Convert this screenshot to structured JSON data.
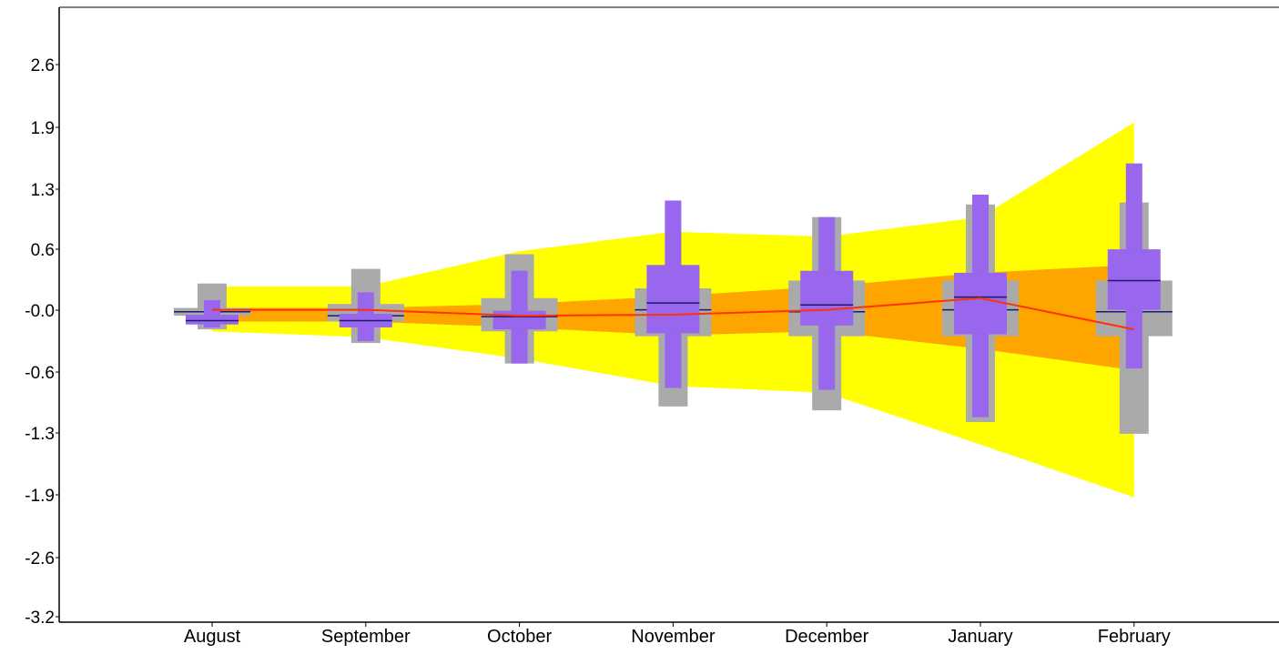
{
  "chart_data": {
    "type": "area",
    "categories": [
      "August",
      "September",
      "October",
      "November",
      "December",
      "January",
      "February"
    ],
    "y_ticks": [
      2.6,
      1.9,
      1.3,
      0.6,
      -0.0,
      -0.6,
      -1.3,
      -1.9,
      -2.6,
      -3.2
    ],
    "y_tick_labels": [
      "2.6",
      "1.9",
      "1.3",
      "0.6",
      "-0.0",
      "-0.6",
      "-1.3",
      "-1.9",
      "-2.6",
      "-3.2"
    ],
    "ylim": [
      -3.2,
      3.1
    ],
    "title": "",
    "xlabel": "",
    "ylabel": "",
    "grid": false,
    "bands": {
      "outer": {
        "color": "#ffff00",
        "upper": [
          0.24,
          0.24,
          0.6,
          0.8,
          0.75,
          0.95,
          1.92
        ],
        "lower": [
          -0.22,
          -0.28,
          -0.5,
          -0.78,
          -0.85,
          -1.38,
          -1.92
        ]
      },
      "inner": {
        "color": "#ffa500",
        "upper": [
          0.02,
          0.02,
          0.06,
          0.14,
          0.24,
          0.38,
          0.46
        ],
        "lower": [
          -0.12,
          -0.12,
          -0.18,
          -0.26,
          -0.22,
          -0.4,
          -0.62
        ]
      }
    },
    "forecast_line": {
      "color": "#ff3300",
      "values": [
        0.0,
        0.0,
        -0.06,
        -0.05,
        0.0,
        0.12,
        -0.2
      ]
    },
    "grey_boxes": {
      "color": "#aaaaaa",
      "whisker_high": [
        0.27,
        0.42,
        0.57,
        null,
        0.95,
        1.08,
        1.1
      ],
      "whisker_low": [
        -0.2,
        -0.34,
        -0.55,
        -0.99,
        -1.03,
        -1.15,
        -1.27
      ],
      "box_high": [
        0.02,
        0.06,
        0.12,
        0.22,
        0.3,
        0.3,
        0.3
      ],
      "box_low": [
        -0.06,
        -0.12,
        -0.22,
        -0.27,
        -0.27,
        -0.27,
        -0.27
      ],
      "median": [
        -0.02,
        -0.06,
        -0.07,
        0.0,
        -0.02,
        0.0,
        -0.02
      ]
    },
    "purple_boxes": {
      "color": "#9966ee",
      "whisker_high": [
        0.1,
        0.18,
        0.4,
        1.12,
        0.95,
        1.18,
        1.5
      ],
      "whisker_low": [
        -0.18,
        -0.32,
        -0.55,
        -0.8,
        -0.82,
        -1.1,
        -0.6
      ],
      "box_high": [
        -0.05,
        -0.04,
        -0.01,
        0.46,
        0.4,
        0.38,
        0.62
      ],
      "box_low": [
        -0.15,
        -0.18,
        -0.2,
        -0.24,
        -0.16,
        -0.25,
        0.0
      ],
      "median": [
        -0.11,
        -0.11,
        -0.07,
        0.07,
        0.05,
        0.13,
        0.3
      ]
    }
  }
}
